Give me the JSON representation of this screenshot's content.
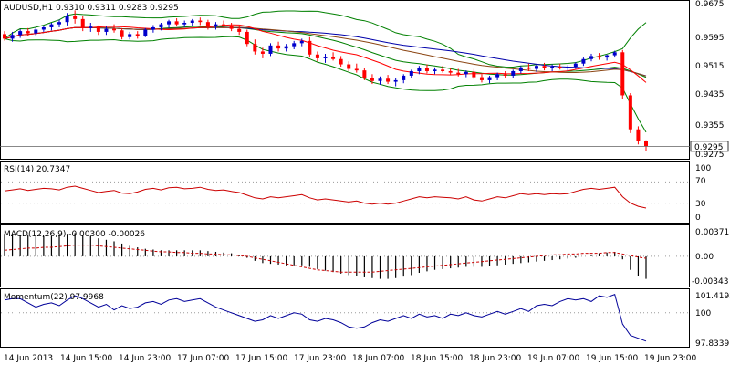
{
  "main": {
    "title": "AUDUSD,H1  0.9310 0.9311 0.9283 0.9295",
    "y_ticks": [
      "0.9675",
      "0.9595",
      "0.9515",
      "0.9435",
      "0.9355",
      "0.9275"
    ],
    "last_price_label": "0.9295"
  },
  "rsi": {
    "title": "RSI(14) 20.7347",
    "y_ticks": [
      "100",
      "70",
      "30",
      "0"
    ]
  },
  "macd": {
    "title": "MACD(12,26,9) -0.00300 -0.00026",
    "y_ticks": [
      "0.00371",
      "0.00",
      "-0.00343"
    ]
  },
  "momentum": {
    "title": "Momentum(22) 97.9968",
    "y_ticks": [
      "101.4192",
      "100",
      "97.8339"
    ]
  },
  "x_ticks": [
    "14 Jun 2013",
    "14 Jun 15:00",
    "14 Jun 23:00",
    "17 Jun 07:00",
    "17 Jun 15:00",
    "17 Jun 23:00",
    "18 Jun 07:00",
    "18 Jun 15:00",
    "18 Jun 23:00",
    "19 Jun 07:00",
    "19 Jun 15:00",
    "19 Jun 23:00"
  ],
  "colors": {
    "bull": "#0000cc",
    "bear": "#ff0000",
    "bollinger": "#008000",
    "ma_fast": "#ff0000",
    "ma_mid": "#8b4513",
    "ma_slow": "#0000aa",
    "rsi": "#cc0000",
    "macd_signal": "#cc0000",
    "momentum": "#000099"
  },
  "chart_data": [
    {
      "type": "candlestick",
      "title": "AUDUSD,H1",
      "ylim": [
        0.9262,
        0.968
      ],
      "x_tick_labels": [
        "14 Jun 2013",
        "14 Jun 15:00",
        "14 Jun 23:00",
        "17 Jun 07:00",
        "17 Jun 15:00",
        "17 Jun 23:00",
        "18 Jun 07:00",
        "18 Jun 15:00",
        "18 Jun 23:00",
        "19 Jun 07:00",
        "19 Jun 15:00",
        "19 Jun 23:00"
      ],
      "ohlc": [
        [
          0.9592,
          0.96,
          0.9575,
          0.958
        ],
        [
          0.958,
          0.9598,
          0.9572,
          0.959
        ],
        [
          0.959,
          0.9605,
          0.9582,
          0.96
        ],
        [
          0.96,
          0.9608,
          0.9586,
          0.9594
        ],
        [
          0.9594,
          0.961,
          0.9588,
          0.9604
        ],
        [
          0.9604,
          0.9615,
          0.9598,
          0.961
        ],
        [
          0.961,
          0.9622,
          0.9602,
          0.9618
        ],
        [
          0.9618,
          0.963,
          0.961,
          0.9624
        ],
        [
          0.9624,
          0.9648,
          0.9615,
          0.964
        ],
        [
          0.964,
          0.9655,
          0.962,
          0.9632
        ],
        [
          0.9632,
          0.964,
          0.96,
          0.9608
        ],
        [
          0.9608,
          0.9622,
          0.9598,
          0.9612
        ],
        [
          0.9612,
          0.9615,
          0.959,
          0.9598
        ],
        [
          0.9598,
          0.9612,
          0.959,
          0.9606
        ],
        [
          0.9606,
          0.9618,
          0.9596,
          0.9602
        ],
        [
          0.9602,
          0.9608,
          0.9578,
          0.9584
        ],
        [
          0.9584,
          0.9598,
          0.9578,
          0.9592
        ],
        [
          0.9592,
          0.96,
          0.958,
          0.9588
        ],
        [
          0.9588,
          0.9608,
          0.9584,
          0.9604
        ],
        [
          0.9604,
          0.9616,
          0.9596,
          0.961
        ],
        [
          0.961,
          0.9622,
          0.9602,
          0.9618
        ],
        [
          0.9618,
          0.963,
          0.9608,
          0.9626
        ],
        [
          0.9626,
          0.9634,
          0.9612,
          0.9618
        ],
        [
          0.9618,
          0.9628,
          0.961,
          0.9622
        ],
        [
          0.9622,
          0.9632,
          0.9614,
          0.9628
        ],
        [
          0.9628,
          0.9636,
          0.9616,
          0.9624
        ],
        [
          0.9624,
          0.963,
          0.9604,
          0.9612
        ],
        [
          0.9612,
          0.9624,
          0.9604,
          0.9618
        ],
        [
          0.9618,
          0.9628,
          0.9608,
          0.9614
        ],
        [
          0.9614,
          0.9622,
          0.96,
          0.9606
        ],
        [
          0.9606,
          0.9614,
          0.959,
          0.9598
        ],
        [
          0.9598,
          0.9604,
          0.956,
          0.9566
        ],
        [
          0.9566,
          0.9578,
          0.9538,
          0.9546
        ],
        [
          0.9546,
          0.9556,
          0.9528,
          0.954
        ],
        [
          0.954,
          0.9568,
          0.9534,
          0.9562
        ],
        [
          0.9562,
          0.9572,
          0.9546,
          0.9554
        ],
        [
          0.9554,
          0.9566,
          0.9546,
          0.956
        ],
        [
          0.956,
          0.9574,
          0.9552,
          0.9568
        ],
        [
          0.9568,
          0.958,
          0.956,
          0.9574
        ],
        [
          0.9574,
          0.9584,
          0.953,
          0.9538
        ],
        [
          0.9538,
          0.9546,
          0.952,
          0.9528
        ],
        [
          0.9528,
          0.954,
          0.9516,
          0.9532
        ],
        [
          0.9532,
          0.9544,
          0.9522,
          0.9526
        ],
        [
          0.9526,
          0.9534,
          0.9506,
          0.9512
        ],
        [
          0.9512,
          0.952,
          0.9494,
          0.95
        ],
        [
          0.95,
          0.9514,
          0.949,
          0.9496
        ],
        [
          0.9496,
          0.9502,
          0.947,
          0.9476
        ],
        [
          0.9476,
          0.9486,
          0.946,
          0.9468
        ],
        [
          0.9468,
          0.948,
          0.9458,
          0.9474
        ],
        [
          0.9474,
          0.9484,
          0.946,
          0.9466
        ],
        [
          0.9466,
          0.9476,
          0.9454,
          0.947
        ],
        [
          0.947,
          0.9486,
          0.9462,
          0.9482
        ],
        [
          0.9482,
          0.9498,
          0.9476,
          0.9494
        ],
        [
          0.9494,
          0.9508,
          0.9486,
          0.9502
        ],
        [
          0.9502,
          0.9512,
          0.9488,
          0.9494
        ],
        [
          0.9494,
          0.9504,
          0.9486,
          0.9498
        ],
        [
          0.9498,
          0.9508,
          0.949,
          0.9494
        ],
        [
          0.9494,
          0.9502,
          0.9484,
          0.949
        ],
        [
          0.949,
          0.95,
          0.948,
          0.9486
        ],
        [
          0.9486,
          0.9496,
          0.9478,
          0.9492
        ],
        [
          0.9492,
          0.95,
          0.9472,
          0.9478
        ],
        [
          0.9478,
          0.9486,
          0.9464,
          0.947
        ],
        [
          0.947,
          0.9482,
          0.9462,
          0.9478
        ],
        [
          0.9478,
          0.949,
          0.947,
          0.9486
        ],
        [
          0.9486,
          0.9494,
          0.9476,
          0.9482
        ],
        [
          0.9482,
          0.9498,
          0.9476,
          0.9494
        ],
        [
          0.9494,
          0.9508,
          0.9488,
          0.9504
        ],
        [
          0.9504,
          0.9514,
          0.9494,
          0.95
        ],
        [
          0.95,
          0.9512,
          0.9492,
          0.9508
        ],
        [
          0.9508,
          0.9516,
          0.9496,
          0.9502
        ],
        [
          0.9502,
          0.9512,
          0.9494,
          0.9506
        ],
        [
          0.9506,
          0.9514,
          0.9498,
          0.9502
        ],
        [
          0.9502,
          0.951,
          0.9494,
          0.9506
        ],
        [
          0.9506,
          0.9518,
          0.95,
          0.9514
        ],
        [
          0.9514,
          0.953,
          0.9508,
          0.9526
        ],
        [
          0.9526,
          0.954,
          0.952,
          0.9534
        ],
        [
          0.9534,
          0.9542,
          0.9524,
          0.953
        ],
        [
          0.953,
          0.9538,
          0.9522,
          0.9536
        ],
        [
          0.9536,
          0.9548,
          0.953,
          0.9544
        ],
        [
          0.9544,
          0.955,
          0.942,
          0.943
        ],
        [
          0.943,
          0.9436,
          0.933,
          0.934
        ],
        [
          0.934,
          0.9348,
          0.93,
          0.931
        ],
        [
          0.931,
          0.9311,
          0.9283,
          0.9295
        ]
      ],
      "last_price": 0.9295
    },
    {
      "type": "line",
      "title": "RSI(14) 20.7347",
      "ylim": [
        0,
        100
      ],
      "levels": [
        70,
        30
      ],
      "values": [
        53,
        55,
        57,
        54,
        56,
        58,
        57,
        55,
        60,
        62,
        58,
        54,
        50,
        52,
        54,
        49,
        48,
        51,
        56,
        58,
        55,
        59,
        60,
        57,
        58,
        60,
        56,
        54,
        55,
        52,
        50,
        45,
        40,
        38,
        42,
        40,
        42,
        44,
        46,
        40,
        36,
        38,
        36,
        34,
        32,
        34,
        30,
        28,
        30,
        28,
        30,
        34,
        38,
        42,
        40,
        42,
        41,
        40,
        38,
        42,
        36,
        34,
        38,
        42,
        40,
        44,
        48,
        46,
        48,
        46,
        48,
        47,
        48,
        52,
        56,
        58,
        56,
        58,
        60,
        42,
        30,
        24,
        20.7347
      ]
    },
    {
      "type": "histogram",
      "title": "MACD(12,26,9) -0.00300 -0.00026",
      "ylim": [
        -0.0039,
        0.004
      ],
      "histogram": [
        0.003,
        0.003,
        0.0029,
        0.0028,
        0.0027,
        0.0027,
        0.0027,
        0.0028,
        0.003,
        0.0031,
        0.0029,
        0.0027,
        0.0024,
        0.0022,
        0.002,
        0.0017,
        0.0014,
        0.0012,
        0.001,
        0.0009,
        0.0008,
        0.0008,
        0.0008,
        0.0008,
        0.0008,
        0.0008,
        0.0007,
        0.0006,
        0.0005,
        0.0004,
        0.0002,
        -0.0002,
        -0.0006,
        -0.0009,
        -0.001,
        -0.0011,
        -0.0012,
        -0.0012,
        -0.0012,
        -0.0014,
        -0.0017,
        -0.0019,
        -0.0021,
        -0.0023,
        -0.0025,
        -0.0026,
        -0.0028,
        -0.0029,
        -0.003,
        -0.003,
        -0.0029,
        -0.0027,
        -0.0025,
        -0.0022,
        -0.002,
        -0.0018,
        -0.0017,
        -0.0016,
        -0.0015,
        -0.0014,
        -0.0014,
        -0.0014,
        -0.0013,
        -0.0012,
        -0.0011,
        -0.001,
        -0.0009,
        -0.0008,
        -0.0007,
        -0.0006,
        -0.0005,
        -0.0004,
        -0.0003,
        -0.0002,
        0.0,
        0.0002,
        0.0004,
        0.0005,
        0.0006,
        -0.0004,
        -0.0018,
        -0.0026,
        -0.003
      ],
      "signal": [
        0.0008,
        0.0009,
        0.001,
        0.0011,
        0.0011,
        0.0012,
        0.0012,
        0.0013,
        0.0014,
        0.0015,
        0.0015,
        0.0015,
        0.0014,
        0.0013,
        0.0012,
        0.0011,
        0.001,
        0.0009,
        0.0008,
        0.0007,
        0.0006,
        0.0006,
        0.0005,
        0.0005,
        0.0004,
        0.0004,
        0.0003,
        0.0003,
        0.0002,
        0.0002,
        0.0001,
        0.0,
        -0.0002,
        -0.0004,
        -0.0006,
        -0.0008,
        -0.001,
        -0.0012,
        -0.0014,
        -0.0016,
        -0.0018,
        -0.0019,
        -0.002,
        -0.0021,
        -0.0021,
        -0.0021,
        -0.0021,
        -0.0021,
        -0.002,
        -0.0019,
        -0.0018,
        -0.0017,
        -0.0016,
        -0.0015,
        -0.0014,
        -0.0013,
        -0.0012,
        -0.0011,
        -0.001,
        -0.0009,
        -0.0008,
        -0.0007,
        -0.0006,
        -0.0005,
        -0.0004,
        -0.0003,
        -0.0002,
        -0.0001,
        0.0,
        0.0001,
        0.0002,
        0.0002,
        0.0003,
        0.0003,
        0.0004,
        0.0004,
        0.0004,
        0.0005,
        0.0005,
        0.0003,
        0.0001,
        -0.0001,
        -0.00026
      ]
    },
    {
      "type": "line",
      "title": "Momentum(22) 97.9968",
      "ylim": [
        97.6,
        101.6
      ],
      "level": 100,
      "values": [
        100.9,
        101.0,
        101.0,
        100.7,
        100.4,
        100.6,
        100.7,
        100.5,
        100.9,
        101.2,
        101.0,
        100.7,
        100.4,
        100.6,
        100.2,
        100.5,
        100.3,
        100.4,
        100.7,
        100.8,
        100.6,
        100.9,
        101.0,
        100.8,
        100.9,
        101.0,
        100.7,
        100.4,
        100.2,
        100.0,
        99.8,
        99.6,
        99.4,
        99.5,
        99.8,
        99.6,
        99.8,
        100.0,
        99.9,
        99.5,
        99.4,
        99.6,
        99.5,
        99.3,
        99.0,
        98.9,
        99.0,
        99.3,
        99.5,
        99.4,
        99.6,
        99.8,
        99.6,
        99.9,
        99.7,
        99.8,
        99.6,
        99.9,
        99.8,
        100.0,
        99.8,
        99.7,
        99.9,
        100.1,
        99.9,
        100.1,
        100.3,
        100.1,
        100.5,
        100.6,
        100.5,
        100.8,
        101.0,
        100.9,
        101.0,
        100.8,
        101.2,
        101.1,
        101.3,
        99.2,
        98.4,
        98.2,
        97.9968
      ]
    }
  ]
}
